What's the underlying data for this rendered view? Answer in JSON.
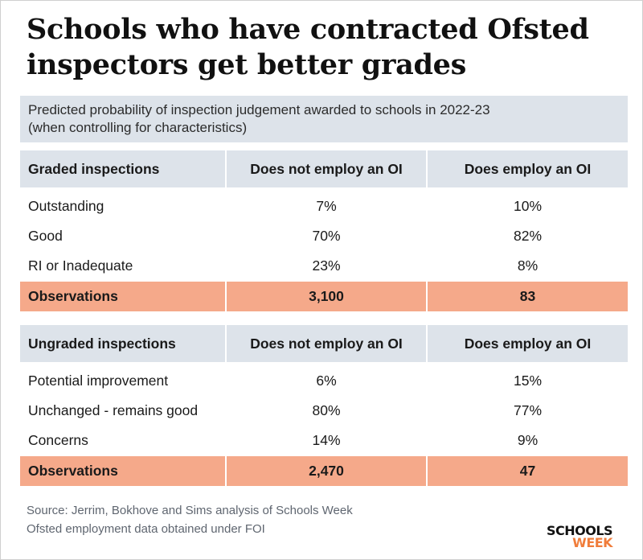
{
  "title": "Schools who have contracted Ofsted inspectors get better grades",
  "subtitle_line1": "Predicted probability of inspection judgement awarded to schools in 2022-23",
  "subtitle_line2": "(when controlling for characteristics)",
  "graded": {
    "headers": [
      "Graded inspections",
      "Does not employ an OI",
      "Does employ an OI"
    ],
    "rows": [
      [
        "Outstanding",
        "7%",
        "10%"
      ],
      [
        "Good",
        "70%",
        "82%"
      ],
      [
        "RI or Inadequate",
        "23%",
        "8%"
      ]
    ],
    "observations": [
      "Observations",
      "3,100",
      "83"
    ]
  },
  "ungraded": {
    "headers": [
      "Ungraded inspections",
      "Does not employ an OI",
      "Does employ an OI"
    ],
    "rows": [
      [
        "Potential improvement",
        "6%",
        "15%"
      ],
      [
        "Unchanged - remains good",
        "80%",
        "77%"
      ],
      [
        "Concerns",
        "14%",
        "9%"
      ]
    ],
    "observations": [
      "Observations",
      "2,470",
      "47"
    ]
  },
  "source_line1": "Source: Jerrim, Bokhove and Sims analysis of Schools Week",
  "source_line2": "Ofsted employment data obtained under FOI",
  "logo": {
    "line1": "SCHOOLS",
    "line2": "WEEK"
  },
  "colors": {
    "header_bg": "#dde3ea",
    "observations_bg": "#f5a98a",
    "logo_accent": "#f07d3b"
  }
}
